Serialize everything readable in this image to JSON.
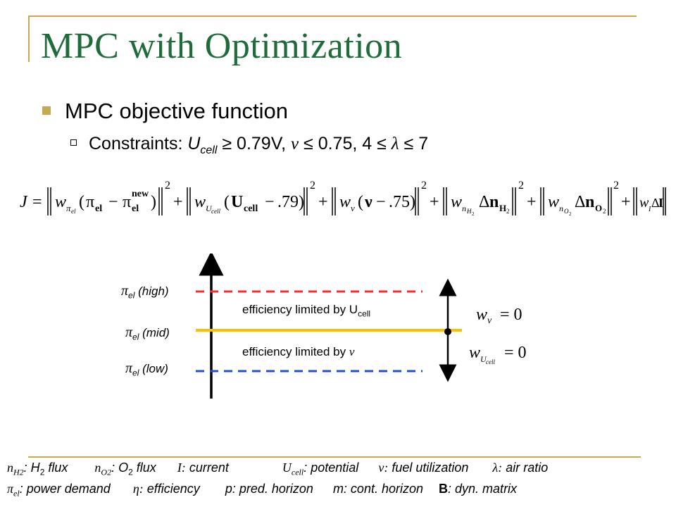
{
  "slide": {
    "title": "MPC with Optimization",
    "accent_color": "#c8a951",
    "title_color": "#1f6b3a"
  },
  "bullets": {
    "level1": "MPC objective function",
    "level2": {
      "prefix": "Constraints: ",
      "ucell_var": "U",
      "ucell_sub": "cell",
      "ucell_constraint": " ≥ 0.79V, ",
      "nu_symbol": "ν",
      "nu_constraint": " ≤ 0.75, 4 ≤ ",
      "lambda_symbol": "λ",
      "lambda_constraint": " ≤ 7"
    }
  },
  "equation": {
    "J": "J",
    "eq": "=",
    "plus": "+",
    "pi": "π",
    "el": "el",
    "new": "new",
    "minus": "−",
    "w": "w",
    "U": "U",
    "cell": "cell",
    "ucell_target": ".79)",
    "nu": "ν",
    "nu_target": ".75)",
    "n": "n",
    "H": "H",
    "O": "O",
    "two": "2",
    "delta": "Δ",
    "I_sym": "I",
    "lp": "(",
    "rp": ")",
    "sq": "2"
  },
  "diagram": {
    "labels": {
      "high_suffix": " (high)",
      "mid_suffix": " (mid)",
      "low_suffix": " (low)",
      "pi": "π",
      "el": "el"
    },
    "regions": {
      "upper_text": "efficiency limited by U",
      "upper_sub": "cell",
      "lower_text": "efficiency limited by ",
      "lower_symbol": "ν"
    },
    "weight_eqs": {
      "w": "w",
      "nu": "ν",
      "U": "U",
      "cell": "cell",
      "eq_zero": "= 0"
    },
    "colors": {
      "high_line": "#ff2b2b",
      "mid_line": "#ffc000",
      "low_line": "#1f4fd8"
    }
  },
  "legend": {
    "line1": {
      "nH2_n": "n",
      "nH2_sub": "H2",
      "nH2_text": ": H",
      "nH2_text_sub": "2",
      "nH2_tail": " flux",
      "nO2_n": "n",
      "nO2_sub": "O2",
      "nO2_text": ": O",
      "nO2_text_sub": "2",
      "nO2_tail": " flux",
      "I_sym": "I:",
      "I_text": " current",
      "U_sym": "U",
      "U_sub": "cell",
      "U_text": ": potential",
      "nu_sym": "ν:",
      "nu_text": " fuel utilization",
      "lambda_sym": "λ:",
      "lambda_text": " air ratio"
    },
    "line2": {
      "pi_sym": "π",
      "pi_sub": "el",
      "pi_text": ": power demand",
      "eta_sym": "η:",
      "eta_text": " efficiency",
      "p_text": "p: pred. horizon",
      "m_text": "m: cont. horizon",
      "B_bold": "B",
      "B_text": ": dyn. matrix"
    }
  }
}
